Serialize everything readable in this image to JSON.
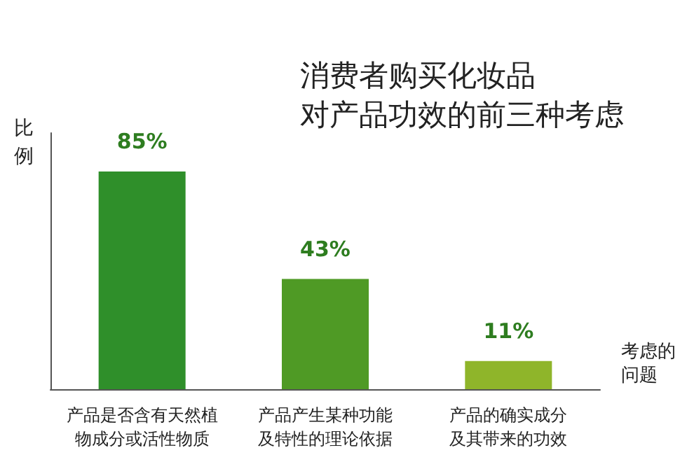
{
  "chart_data": {
    "type": "bar",
    "title": "消费者购买化妆品对产品功效的前三种考虑",
    "ylabel": "比例",
    "xlabel": "考虑的问题",
    "categories": [
      "产品是否含有天然植物成分或活性物质",
      "产品产生某种功能及特性的理论依据",
      "产品的确实成分及其带来的功效"
    ],
    "values": [
      85,
      43,
      11
    ],
    "colors": [
      "#2f8f2a",
      "#4f9a25",
      "#8fb52a"
    ],
    "value_labels": [
      "85%",
      "43%",
      "11%"
    ]
  }
}
